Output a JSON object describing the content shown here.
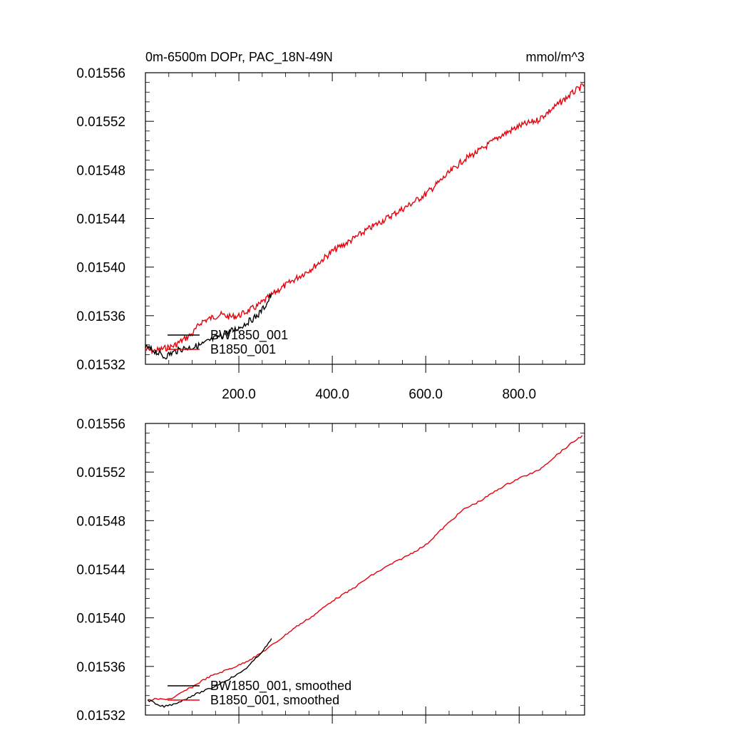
{
  "chart_data": [
    {
      "type": "line",
      "title": "0m-6500m DOPr, PAC_18N-49N",
      "units": "mmol/m^3",
      "xlabel": "",
      "ylabel": "",
      "xlim": [
        0,
        940
      ],
      "ylim": [
        0.01532,
        0.01556
      ],
      "xticks": [
        "200.0",
        "400.0",
        "600.0",
        "800.0"
      ],
      "yticks": [
        "0.01532",
        "0.01536",
        "0.01540",
        "0.01544",
        "0.01548",
        "0.01552",
        "0.01556"
      ],
      "legend_position": "bottom-left",
      "series": [
        {
          "name": "BW1850_001",
          "color": "#000000",
          "x": [
            0,
            20,
            40,
            60,
            80,
            100,
            120,
            140,
            160,
            180,
            200,
            220,
            240,
            260,
            270
          ],
          "y": [
            0.015334,
            0.015331,
            0.015326,
            0.01533,
            0.015333,
            0.015334,
            0.015336,
            0.01534,
            0.015343,
            0.015347,
            0.01535,
            0.015355,
            0.01536,
            0.01537,
            0.015378
          ]
        },
        {
          "name": "B1850_001",
          "color": "#e8000b",
          "x": [
            0,
            20,
            40,
            60,
            80,
            100,
            120,
            140,
            160,
            180,
            200,
            240,
            280,
            320,
            360,
            400,
            440,
            480,
            520,
            560,
            600,
            640,
            680,
            720,
            760,
            800,
            840,
            880,
            920,
            940
          ],
          "y": [
            0.015332,
            0.015331,
            0.015333,
            0.015335,
            0.01534,
            0.015345,
            0.015355,
            0.015358,
            0.015361,
            0.015359,
            0.01536,
            0.015368,
            0.01538,
            0.01539,
            0.0154,
            0.015413,
            0.015422,
            0.015432,
            0.015441,
            0.01545,
            0.01546,
            0.015474,
            0.015488,
            0.015497,
            0.015508,
            0.015516,
            0.015521,
            0.015533,
            0.015545,
            0.01555
          ]
        }
      ]
    },
    {
      "type": "line",
      "title": "",
      "xlabel": "",
      "ylabel": "",
      "xlim": [
        0,
        940
      ],
      "ylim": [
        0.01532,
        0.01556
      ],
      "xticks": [],
      "yticks": [
        "0.01532",
        "0.01536",
        "0.01540",
        "0.01544",
        "0.01548",
        "0.01552",
        "0.01556"
      ],
      "legend_position": "bottom-left",
      "series": [
        {
          "name": "BW1850_001, smoothed",
          "color": "#000000",
          "x": [
            5,
            15,
            25,
            40,
            60,
            80,
            100,
            120,
            140,
            160,
            180,
            200,
            220,
            240,
            260,
            270
          ],
          "y": [
            0.015332,
            0.015331,
            0.015328,
            0.015327,
            0.015329,
            0.015332,
            0.015336,
            0.015339,
            0.015342,
            0.015346,
            0.01535,
            0.015354,
            0.01536,
            0.015368,
            0.015377,
            0.015383
          ]
        },
        {
          "name": "B1850_001, smoothed",
          "color": "#e8000b",
          "x": [
            5,
            20,
            40,
            60,
            80,
            100,
            120,
            140,
            160,
            180,
            200,
            240,
            280,
            320,
            360,
            400,
            440,
            480,
            520,
            560,
            600,
            640,
            680,
            720,
            760,
            800,
            840,
            880,
            920,
            935
          ],
          "y": [
            0.015332,
            0.015333,
            0.015333,
            0.015334,
            0.015339,
            0.015343,
            0.015348,
            0.015352,
            0.015355,
            0.015358,
            0.015361,
            0.015369,
            0.01538,
            0.015392,
            0.015402,
            0.015414,
            0.015423,
            0.015434,
            0.015443,
            0.015451,
            0.01546,
            0.015475,
            0.015489,
            0.015497,
            0.015507,
            0.015515,
            0.015521,
            0.015534,
            0.015546,
            0.01555
          ]
        }
      ]
    }
  ]
}
